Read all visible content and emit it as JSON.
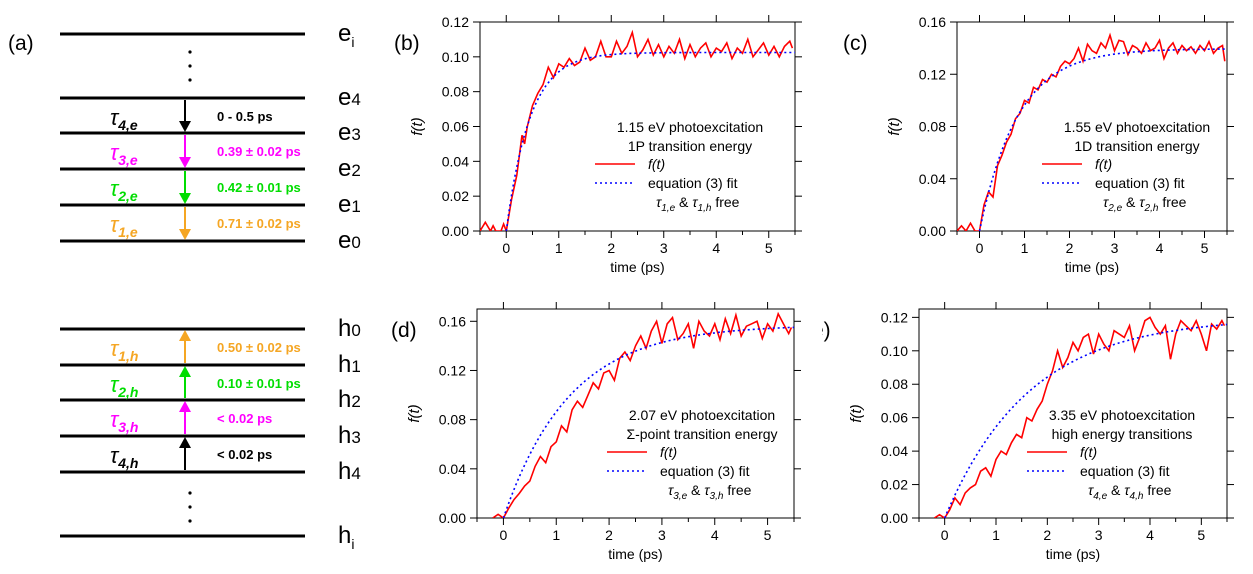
{
  "figure_label_a": "(a)",
  "level_diagram": {
    "electron_levels": [
      "e",
      "e4",
      "e3",
      "e2",
      "e1",
      "e0"
    ],
    "electron_top_sub": "i",
    "hole_levels": [
      "h0",
      "h1",
      "h2",
      "h3",
      "h4",
      "h"
    ],
    "hole_bottom_sub": "i",
    "level_label_display": {
      "e4": "e4",
      "e3": "e3",
      "e2": "e2",
      "e1": "e1",
      "e0": "e0",
      "h0": "h0",
      "h1": "h1",
      "h2": "h2",
      "h3": "h3",
      "h4": "h4"
    },
    "electron_transitions": [
      {
        "tau": "τ",
        "sub": "4,e",
        "value": "0 - 0.5 ps",
        "color": "#000000"
      },
      {
        "tau": "τ",
        "sub": "3,e",
        "value": "0.39 ± 0.02 ps",
        "color": "#ff00ff"
      },
      {
        "tau": "τ",
        "sub": "2,e",
        "value": "0.42 ± 0.01 ps",
        "color": "#00dd00"
      },
      {
        "tau": "τ",
        "sub": "1,e",
        "value": "0.71 ± 0.02 ps",
        "color": "#f5a623"
      }
    ],
    "hole_transitions": [
      {
        "tau": "τ",
        "sub": "1,h",
        "value": "0.50 ± 0.02 ps",
        "color": "#f5a623"
      },
      {
        "tau": "τ",
        "sub": "2,h",
        "value": "0.10 ± 0.01 ps",
        "color": "#00dd00"
      },
      {
        "tau": "τ",
        "sub": "3,h",
        "value": "< 0.02 ps",
        "color": "#ff00ff"
      },
      {
        "tau": "τ",
        "sub": "4,h",
        "value": "< 0.02 ps",
        "color": "#000000"
      }
    ]
  },
  "chart_data": [
    {
      "panel": "(b)",
      "type": "line",
      "xlabel": "time (ps)",
      "ylabel": "f(t)",
      "xlim": [
        -0.5,
        5.5
      ],
      "ylim": [
        0,
        0.12
      ],
      "xticks": [
        0,
        1,
        2,
        3,
        4,
        5
      ],
      "yticks": [
        "0.00",
        "0.02",
        "0.04",
        "0.06",
        "0.08",
        "0.10",
        "0.12"
      ],
      "legend_lines": [
        "1.15 eV photoexcitation",
        "1P transition energy"
      ],
      "legend_series": [
        "f(t)",
        "equation (3) fit"
      ],
      "legend_free": {
        "a": "τ",
        "a_sub": "1,e",
        "amp": "&",
        "b": "τ",
        "b_sub": "1,h",
        "tail": "free"
      },
      "series": [
        {
          "name": "f(t)",
          "color": "#ff0000",
          "style": "solid",
          "x": [
            -0.5,
            -0.4,
            -0.3,
            -0.25,
            -0.2,
            -0.1,
            -0.05,
            0,
            0.1,
            0.2,
            0.3,
            0.35,
            0.4,
            0.5,
            0.6,
            0.7,
            0.8,
            0.9,
            1.0,
            1.1,
            1.2,
            1.3,
            1.4,
            1.5,
            1.6,
            1.7,
            1.8,
            1.9,
            2.0,
            2.1,
            2.2,
            2.3,
            2.4,
            2.5,
            2.6,
            2.7,
            2.8,
            2.9,
            3.0,
            3.1,
            3.2,
            3.3,
            3.4,
            3.5,
            3.6,
            3.7,
            3.8,
            3.9,
            4.0,
            4.1,
            4.2,
            4.3,
            4.4,
            4.5,
            4.6,
            4.7,
            4.8,
            4.9,
            5.0,
            5.1,
            5.2,
            5.3,
            5.4,
            5.45
          ],
          "y": [
            0.0,
            0.005,
            0.0,
            0.003,
            0.0,
            0.0,
            0.004,
            0.0,
            0.018,
            0.032,
            0.055,
            0.05,
            0.06,
            0.072,
            0.079,
            0.084,
            0.094,
            0.088,
            0.096,
            0.094,
            0.099,
            0.095,
            0.097,
            0.105,
            0.098,
            0.1,
            0.109,
            0.1,
            0.1,
            0.109,
            0.102,
            0.106,
            0.114,
            0.1,
            0.104,
            0.11,
            0.101,
            0.107,
            0.1,
            0.106,
            0.102,
            0.11,
            0.099,
            0.107,
            0.1,
            0.105,
            0.108,
            0.1,
            0.105,
            0.103,
            0.108,
            0.099,
            0.105,
            0.102,
            0.11,
            0.1,
            0.104,
            0.108,
            0.101,
            0.106,
            0.1,
            0.106,
            0.109,
            0.105
          ]
        },
        {
          "name": "equation (3) fit",
          "color": "#0000ff",
          "style": "dotted",
          "fit": {
            "amp": 0.1025,
            "tau": 0.45
          }
        }
      ]
    },
    {
      "panel": "(c)",
      "type": "line",
      "xlabel": "time (ps)",
      "ylabel": "f(t)",
      "xlim": [
        -0.5,
        5.5
      ],
      "ylim": [
        0,
        0.16
      ],
      "xticks": [
        0,
        1,
        2,
        3,
        4,
        5
      ],
      "yticks": [
        "0.00",
        "0.04",
        "0.08",
        "0.12",
        "0.16"
      ],
      "legend_lines": [
        "1.55 eV photoexcitation",
        "1D transition energy"
      ],
      "legend_series": [
        "f(t)",
        "equation (3) fit"
      ],
      "legend_free": {
        "a": "τ",
        "a_sub": "2,e",
        "amp": "&",
        "b": "τ",
        "b_sub": "2,h",
        "tail": "free"
      },
      "series": [
        {
          "name": "f(t)",
          "color": "#ff0000",
          "style": "solid",
          "x": [
            -0.5,
            -0.4,
            -0.3,
            -0.2,
            -0.1,
            0,
            0.1,
            0.2,
            0.3,
            0.4,
            0.5,
            0.6,
            0.7,
            0.8,
            0.9,
            1.0,
            1.1,
            1.2,
            1.3,
            1.4,
            1.5,
            1.6,
            1.7,
            1.8,
            1.9,
            2.0,
            2.1,
            2.2,
            2.3,
            2.4,
            2.5,
            2.6,
            2.7,
            2.8,
            2.9,
            3.0,
            3.1,
            3.2,
            3.3,
            3.4,
            3.5,
            3.6,
            3.7,
            3.8,
            3.9,
            4.0,
            4.1,
            4.2,
            4.3,
            4.4,
            4.5,
            4.6,
            4.7,
            4.8,
            4.9,
            5.0,
            5.1,
            5.2,
            5.3,
            5.4,
            5.45
          ],
          "y": [
            0.0,
            0.004,
            0.0,
            0.006,
            0.0,
            0.0,
            0.02,
            0.03,
            0.026,
            0.05,
            0.058,
            0.068,
            0.074,
            0.086,
            0.09,
            0.1,
            0.098,
            0.11,
            0.108,
            0.116,
            0.114,
            0.12,
            0.118,
            0.126,
            0.13,
            0.128,
            0.132,
            0.14,
            0.13,
            0.143,
            0.138,
            0.136,
            0.144,
            0.14,
            0.15,
            0.138,
            0.146,
            0.145,
            0.135,
            0.142,
            0.14,
            0.136,
            0.144,
            0.138,
            0.14,
            0.146,
            0.132,
            0.14,
            0.144,
            0.136,
            0.142,
            0.138,
            0.141,
            0.136,
            0.142,
            0.138,
            0.145,
            0.136,
            0.14,
            0.142,
            0.13
          ]
        },
        {
          "name": "equation (3) fit",
          "color": "#0000ff",
          "style": "dotted",
          "fit": {
            "amp": 0.1395,
            "tau": 0.85
          }
        }
      ]
    },
    {
      "panel": "(d)",
      "type": "line",
      "xlabel": "time (ps)",
      "ylabel": "f(t)",
      "xlim": [
        -0.5,
        5.5
      ],
      "ylim": [
        0,
        0.17
      ],
      "xticks": [
        0,
        1,
        2,
        3,
        4,
        5
      ],
      "yticks": [
        "0.00",
        "0.04",
        "0.08",
        "0.12",
        "0.16"
      ],
      "legend_lines": [
        "2.07 eV photoexcitation",
        "Σ-point transition energy"
      ],
      "legend_series": [
        "f(t)",
        "equation (3) fit"
      ],
      "legend_free": {
        "a": "τ",
        "a_sub": "3,e",
        "amp": "&",
        "b": "τ",
        "b_sub": "3,h",
        "tail": "free"
      },
      "series": [
        {
          "name": "f(t)",
          "color": "#ff0000",
          "style": "solid",
          "x": [
            -0.2,
            -0.1,
            0,
            0.1,
            0.2,
            0.3,
            0.4,
            0.5,
            0.6,
            0.7,
            0.8,
            0.9,
            1.0,
            1.1,
            1.2,
            1.3,
            1.4,
            1.5,
            1.6,
            1.7,
            1.8,
            1.9,
            2.0,
            2.1,
            2.2,
            2.3,
            2.4,
            2.5,
            2.6,
            2.7,
            2.8,
            2.9,
            3.0,
            3.1,
            3.2,
            3.3,
            3.4,
            3.5,
            3.6,
            3.7,
            3.8,
            3.9,
            4.0,
            4.1,
            4.2,
            4.3,
            4.4,
            4.5,
            4.6,
            4.7,
            4.8,
            4.9,
            5.0,
            5.1,
            5.2,
            5.3,
            5.4,
            5.45
          ],
          "y": [
            0.0,
            0.003,
            0.0,
            0.008,
            0.015,
            0.02,
            0.026,
            0.03,
            0.042,
            0.05,
            0.045,
            0.058,
            0.062,
            0.075,
            0.07,
            0.088,
            0.095,
            0.09,
            0.1,
            0.11,
            0.105,
            0.118,
            0.12,
            0.112,
            0.13,
            0.135,
            0.128,
            0.14,
            0.148,
            0.138,
            0.152,
            0.16,
            0.142,
            0.158,
            0.163,
            0.145,
            0.15,
            0.158,
            0.138,
            0.16,
            0.152,
            0.148,
            0.158,
            0.145,
            0.162,
            0.15,
            0.165,
            0.148,
            0.156,
            0.158,
            0.16,
            0.146,
            0.158,
            0.152,
            0.166,
            0.158,
            0.15,
            0.155
          ]
        },
        {
          "name": "equation (3) fit",
          "color": "#0000ff",
          "style": "dotted",
          "fit": {
            "amp": 0.157,
            "tau": 1.25
          }
        }
      ]
    },
    {
      "panel": "(e)",
      "type": "line",
      "xlabel": "time (ps)",
      "ylabel": "f(t)",
      "xlim": [
        -0.5,
        5.5
      ],
      "ylim": [
        0,
        0.125
      ],
      "xticks": [
        0,
        1,
        2,
        3,
        4,
        5
      ],
      "yticks": [
        "0.00",
        "0.02",
        "0.04",
        "0.06",
        "0.08",
        "0.10",
        "0.12"
      ],
      "legend_lines": [
        "3.35 eV photoexcitation",
        "high energy transitions"
      ],
      "legend_series": [
        "f(t)",
        "equation (3) fit"
      ],
      "legend_free": {
        "a": "τ",
        "a_sub": "4,e",
        "amp": "&",
        "b": "τ",
        "b_sub": "4,h",
        "tail": "free"
      },
      "series": [
        {
          "name": "f(t)",
          "color": "#ff0000",
          "style": "solid",
          "x": [
            -0.2,
            -0.1,
            0,
            0.1,
            0.2,
            0.3,
            0.4,
            0.5,
            0.6,
            0.7,
            0.8,
            0.9,
            1.0,
            1.1,
            1.2,
            1.3,
            1.4,
            1.5,
            1.6,
            1.7,
            1.8,
            1.9,
            2.0,
            2.1,
            2.2,
            2.3,
            2.4,
            2.5,
            2.6,
            2.7,
            2.8,
            2.9,
            3.0,
            3.1,
            3.2,
            3.3,
            3.4,
            3.5,
            3.6,
            3.7,
            3.8,
            3.9,
            4.0,
            4.1,
            4.2,
            4.3,
            4.4,
            4.5,
            4.6,
            4.7,
            4.8,
            4.9,
            5.0,
            5.1,
            5.2,
            5.3,
            5.4,
            5.45
          ],
          "y": [
            0.0,
            0.002,
            0.0,
            0.005,
            0.012,
            0.008,
            0.015,
            0.018,
            0.02,
            0.028,
            0.03,
            0.025,
            0.035,
            0.04,
            0.038,
            0.045,
            0.05,
            0.048,
            0.06,
            0.058,
            0.065,
            0.07,
            0.08,
            0.088,
            0.1,
            0.09,
            0.096,
            0.105,
            0.1,
            0.108,
            0.11,
            0.098,
            0.11,
            0.104,
            0.1,
            0.112,
            0.11,
            0.108,
            0.115,
            0.1,
            0.108,
            0.118,
            0.12,
            0.114,
            0.11,
            0.115,
            0.095,
            0.11,
            0.118,
            0.115,
            0.112,
            0.118,
            0.11,
            0.1,
            0.116,
            0.113,
            0.118,
            0.115
          ]
        },
        {
          "name": "equation (3) fit",
          "color": "#0000ff",
          "style": "dotted",
          "fit": {
            "amp": 0.12,
            "tau": 1.65
          }
        }
      ]
    }
  ]
}
